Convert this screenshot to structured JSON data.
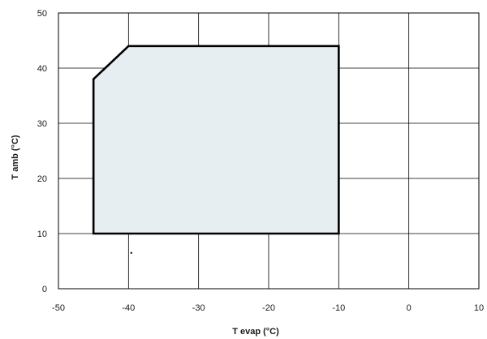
{
  "chart_data": {
    "type": "area",
    "xlabel": "T evap (°C)",
    "ylabel": "T amb (°C)",
    "xlim": [
      -50,
      10
    ],
    "ylim": [
      0,
      50
    ],
    "x_ticks": [
      -50,
      -40,
      -30,
      -20,
      -10,
      0,
      10
    ],
    "y_ticks": [
      0,
      10,
      20,
      30,
      40,
      50
    ],
    "x_tick_labels": [
      "-50",
      "-40",
      "-30",
      "-20",
      "-10",
      "0",
      "10"
    ],
    "y_tick_labels": [
      "0",
      "10",
      "20",
      "30",
      "40",
      "50"
    ],
    "grid": true,
    "series": [
      {
        "x": [
          -45,
          -45,
          -40,
          -10,
          -10,
          -45
        ],
        "y": [
          10,
          38,
          44,
          44,
          10,
          10
        ]
      }
    ],
    "stray_point": {
      "x": -39.6,
      "y": 6.5
    },
    "colors": {
      "fill": "#e6eef2",
      "stroke": "#000000",
      "grid": "#000000"
    }
  }
}
